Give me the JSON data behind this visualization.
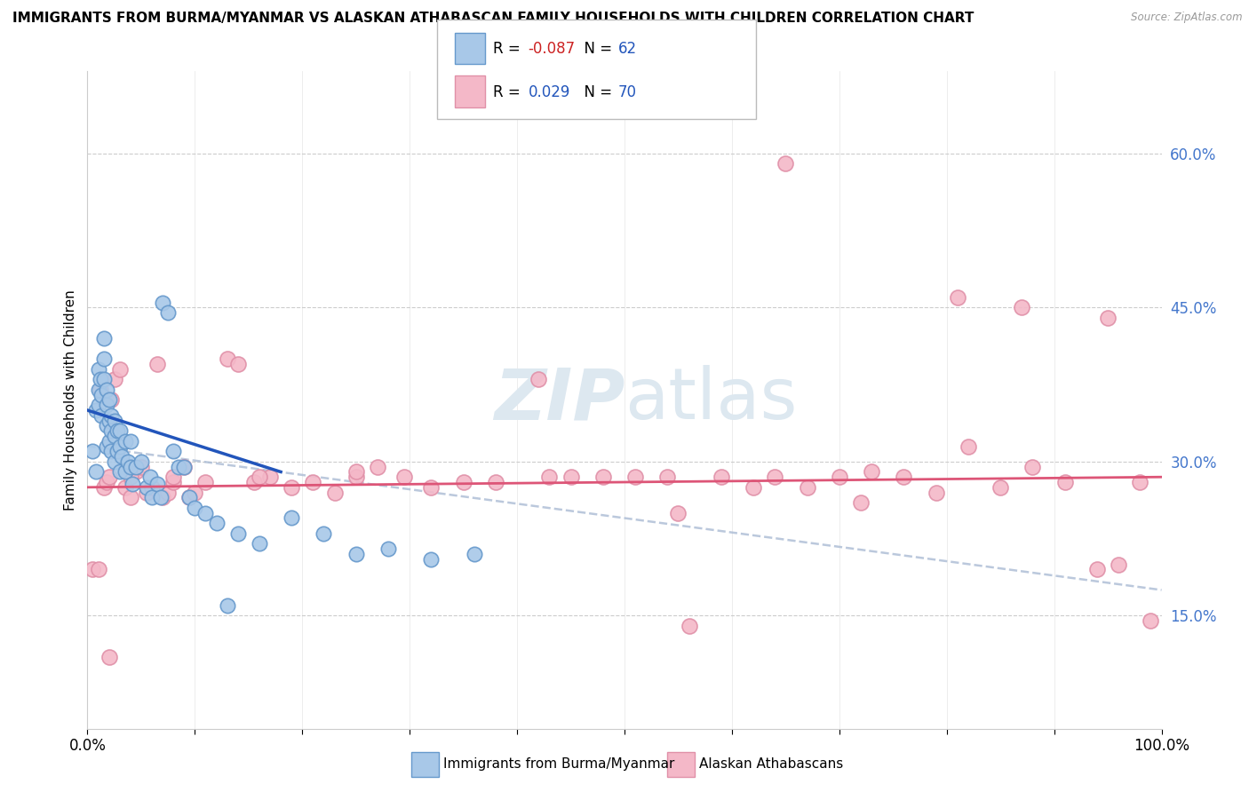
{
  "title": "IMMIGRANTS FROM BURMA/MYANMAR VS ALASKAN ATHABASCAN FAMILY HOUSEHOLDS WITH CHILDREN CORRELATION CHART",
  "source": "Source: ZipAtlas.com",
  "ylabel": "Family Households with Children",
  "legend_blue_r": "-0.087",
  "legend_blue_n": "62",
  "legend_pink_r": "0.029",
  "legend_pink_n": "70",
  "legend_blue_label": "Immigrants from Burma/Myanmar",
  "legend_pink_label": "Alaskan Athabascans",
  "ytick_vals": [
    0.15,
    0.3,
    0.45,
    0.6
  ],
  "ytick_labels": [
    "15.0%",
    "30.0%",
    "45.0%",
    "60.0%"
  ],
  "xtick_vals": [
    0.0,
    0.1,
    0.2,
    0.3,
    0.4,
    0.5,
    0.6,
    0.7,
    0.8,
    0.9,
    1.0
  ],
  "xtick_labels": [
    "0.0%",
    "",
    "",
    "",
    "",
    "",
    "",
    "",
    "",
    "",
    "100.0%"
  ],
  "xlim": [
    0.0,
    1.0
  ],
  "ylim": [
    0.04,
    0.68
  ],
  "background_color": "#ffffff",
  "grid_color": "#cccccc",
  "blue_scatter_color": "#a8c8e8",
  "pink_scatter_color": "#f4b8c8",
  "blue_line_color": "#2255bb",
  "pink_line_color": "#dd5577",
  "dashed_line_color": "#aabbd4",
  "watermark_color": "#dde8f0",
  "blue_points_x": [
    0.005,
    0.008,
    0.008,
    0.01,
    0.01,
    0.01,
    0.012,
    0.013,
    0.013,
    0.015,
    0.015,
    0.015,
    0.018,
    0.018,
    0.018,
    0.018,
    0.02,
    0.02,
    0.02,
    0.022,
    0.022,
    0.022,
    0.025,
    0.025,
    0.025,
    0.028,
    0.028,
    0.03,
    0.03,
    0.03,
    0.032,
    0.035,
    0.035,
    0.038,
    0.04,
    0.04,
    0.042,
    0.045,
    0.05,
    0.055,
    0.058,
    0.06,
    0.065,
    0.068,
    0.07,
    0.075,
    0.08,
    0.085,
    0.09,
    0.095,
    0.1,
    0.11,
    0.12,
    0.13,
    0.14,
    0.16,
    0.19,
    0.22,
    0.25,
    0.28,
    0.32,
    0.36
  ],
  "blue_points_y": [
    0.31,
    0.29,
    0.35,
    0.39,
    0.37,
    0.355,
    0.38,
    0.365,
    0.345,
    0.42,
    0.4,
    0.38,
    0.37,
    0.355,
    0.335,
    0.315,
    0.36,
    0.34,
    0.32,
    0.345,
    0.33,
    0.31,
    0.34,
    0.325,
    0.3,
    0.33,
    0.31,
    0.33,
    0.315,
    0.29,
    0.305,
    0.32,
    0.29,
    0.3,
    0.32,
    0.295,
    0.278,
    0.295,
    0.3,
    0.275,
    0.285,
    0.265,
    0.278,
    0.265,
    0.455,
    0.445,
    0.31,
    0.295,
    0.295,
    0.265,
    0.255,
    0.25,
    0.24,
    0.16,
    0.23,
    0.22,
    0.245,
    0.23,
    0.21,
    0.215,
    0.205,
    0.21
  ],
  "pink_points_x": [
    0.005,
    0.01,
    0.012,
    0.015,
    0.018,
    0.02,
    0.022,
    0.025,
    0.03,
    0.035,
    0.04,
    0.045,
    0.05,
    0.055,
    0.06,
    0.065,
    0.07,
    0.075,
    0.08,
    0.09,
    0.095,
    0.1,
    0.11,
    0.13,
    0.14,
    0.155,
    0.17,
    0.19,
    0.21,
    0.23,
    0.25,
    0.27,
    0.295,
    0.32,
    0.35,
    0.38,
    0.42,
    0.45,
    0.48,
    0.51,
    0.54,
    0.56,
    0.59,
    0.62,
    0.64,
    0.67,
    0.7,
    0.73,
    0.76,
    0.79,
    0.82,
    0.85,
    0.88,
    0.91,
    0.94,
    0.96,
    0.98,
    0.99,
    0.65,
    0.02,
    0.04,
    0.08,
    0.16,
    0.25,
    0.43,
    0.55,
    0.72,
    0.81,
    0.87,
    0.95
  ],
  "pink_points_y": [
    0.195,
    0.195,
    0.37,
    0.275,
    0.28,
    0.285,
    0.36,
    0.38,
    0.39,
    0.275,
    0.265,
    0.29,
    0.295,
    0.27,
    0.275,
    0.395,
    0.265,
    0.27,
    0.28,
    0.295,
    0.265,
    0.27,
    0.28,
    0.4,
    0.395,
    0.28,
    0.285,
    0.275,
    0.28,
    0.27,
    0.285,
    0.295,
    0.285,
    0.275,
    0.28,
    0.28,
    0.38,
    0.285,
    0.285,
    0.285,
    0.285,
    0.14,
    0.285,
    0.275,
    0.285,
    0.275,
    0.285,
    0.29,
    0.285,
    0.27,
    0.315,
    0.275,
    0.295,
    0.28,
    0.195,
    0.2,
    0.28,
    0.145,
    0.59,
    0.11,
    0.285,
    0.285,
    0.285,
    0.29,
    0.285,
    0.25,
    0.26,
    0.46,
    0.45,
    0.44
  ],
  "blue_line": [
    [
      0.0,
      0.35
    ],
    [
      0.18,
      0.29
    ]
  ],
  "pink_line": [
    [
      0.0,
      0.275
    ],
    [
      1.0,
      0.285
    ]
  ],
  "dashed_line": [
    [
      0.0,
      0.315
    ],
    [
      1.0,
      0.175
    ]
  ]
}
